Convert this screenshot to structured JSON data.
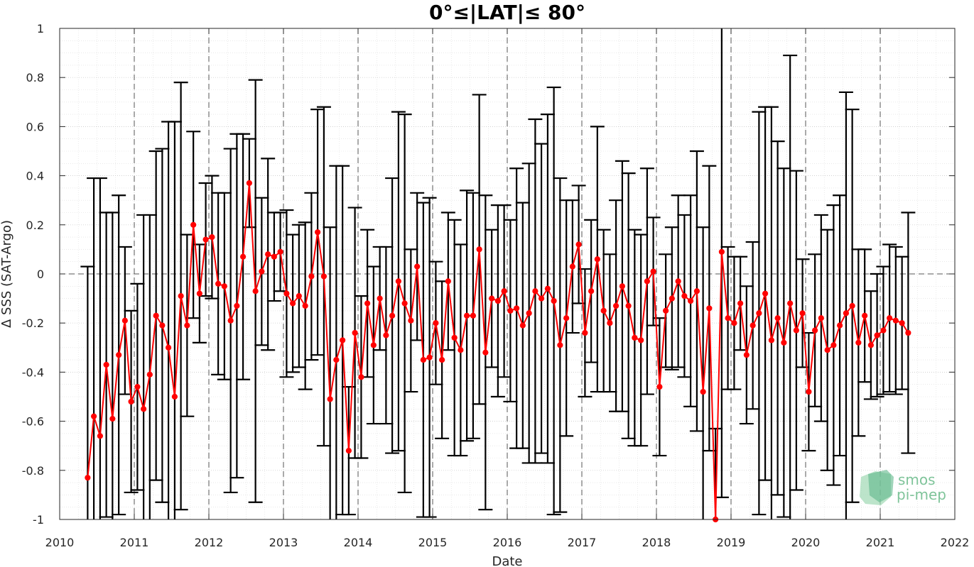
{
  "chart_data": {
    "type": "line",
    "title": "0°≤|LAT|≤ 80°",
    "xlabel": "Date",
    "ylabel": "Δ SSS (SAT-Argo)",
    "xlim": [
      2010,
      2022
    ],
    "ylim": [
      -1,
      1
    ],
    "x_ticks": [
      "2010",
      "2011",
      "2012",
      "2013",
      "2014",
      "2015",
      "2016",
      "2017",
      "2018",
      "2019",
      "2020",
      "2021",
      "2022"
    ],
    "y_ticks": [
      "-1",
      "-0.8",
      "-0.6",
      "-0.4",
      "-0.2",
      "0",
      "0.2",
      "0.4",
      "0.6",
      "0.8",
      "1"
    ],
    "grid": true,
    "minor_grid": true,
    "series": [
      {
        "color": "#ff0000",
        "errorbar_color": "#000000",
        "x": [
          2010.375,
          2010.458,
          2010.542,
          2010.625,
          2010.708,
          2010.792,
          2010.875,
          2010.958,
          2011.042,
          2011.125,
          2011.208,
          2011.292,
          2011.375,
          2011.458,
          2011.542,
          2011.625,
          2011.708,
          2011.792,
          2011.875,
          2011.958,
          2012.042,
          2012.125,
          2012.208,
          2012.292,
          2012.375,
          2012.458,
          2012.542,
          2012.625,
          2012.708,
          2012.792,
          2012.875,
          2012.958,
          2013.042,
          2013.125,
          2013.208,
          2013.292,
          2013.375,
          2013.458,
          2013.542,
          2013.625,
          2013.708,
          2013.792,
          2013.875,
          2013.958,
          2014.042,
          2014.125,
          2014.208,
          2014.292,
          2014.375,
          2014.458,
          2014.542,
          2014.625,
          2014.708,
          2014.792,
          2014.875,
          2014.958,
          2015.042,
          2015.125,
          2015.208,
          2015.292,
          2015.375,
          2015.458,
          2015.542,
          2015.625,
          2015.708,
          2015.792,
          2015.875,
          2015.958,
          2016.042,
          2016.125,
          2016.208,
          2016.292,
          2016.375,
          2016.458,
          2016.542,
          2016.625,
          2016.708,
          2016.792,
          2016.875,
          2016.958,
          2017.042,
          2017.125,
          2017.208,
          2017.292,
          2017.375,
          2017.458,
          2017.542,
          2017.625,
          2017.708,
          2017.792,
          2017.875,
          2017.958,
          2018.042,
          2018.125,
          2018.208,
          2018.292,
          2018.375,
          2018.458,
          2018.542,
          2018.625,
          2018.708,
          2018.792,
          2018.875,
          2018.958,
          2019.042,
          2019.125,
          2019.208,
          2019.292,
          2019.375,
          2019.458,
          2019.542,
          2019.625,
          2019.708,
          2019.792,
          2019.875,
          2019.958,
          2020.042,
          2020.125,
          2020.208,
          2020.292,
          2020.375,
          2020.458,
          2020.542,
          2020.625,
          2020.708,
          2020.792,
          2020.875,
          2020.958,
          2021.042,
          2021.125,
          2021.208,
          2021.292,
          2021.375
        ],
        "values": [
          -0.83,
          -0.58,
          -0.66,
          -0.37,
          -0.59,
          -0.33,
          -0.19,
          -0.52,
          -0.46,
          -0.55,
          -0.41,
          -0.17,
          -0.21,
          -0.3,
          -0.5,
          -0.09,
          -0.21,
          0.2,
          -0.08,
          0.14,
          0.15,
          -0.04,
          -0.05,
          -0.19,
          -0.13,
          0.07,
          0.37,
          -0.07,
          0.01,
          0.08,
          0.07,
          0.09,
          -0.08,
          -0.12,
          -0.09,
          -0.13,
          -0.01,
          0.17,
          -0.01,
          -0.51,
          -0.35,
          -0.27,
          -0.72,
          -0.24,
          -0.42,
          -0.12,
          -0.29,
          -0.1,
          -0.25,
          -0.17,
          -0.03,
          -0.12,
          -0.19,
          0.03,
          -0.35,
          -0.34,
          -0.2,
          -0.35,
          -0.03,
          -0.26,
          -0.31,
          -0.17,
          -0.17,
          0.1,
          -0.32,
          -0.1,
          -0.11,
          -0.07,
          -0.15,
          -0.14,
          -0.21,
          -0.16,
          -0.07,
          -0.1,
          -0.06,
          -0.11,
          -0.29,
          -0.18,
          0.03,
          0.12,
          -0.24,
          -0.07,
          0.06,
          -0.15,
          -0.2,
          -0.13,
          -0.05,
          -0.13,
          -0.26,
          -0.27,
          -0.03,
          0.01,
          -0.46,
          -0.15,
          -0.1,
          -0.03,
          -0.09,
          -0.11,
          -0.07,
          -0.48,
          -0.14,
          -1.0,
          0.09,
          -0.18,
          -0.2,
          -0.12,
          -0.33,
          -0.21,
          -0.16,
          -0.08,
          -0.27,
          -0.18,
          -0.28,
          -0.12,
          -0.23,
          -0.16,
          -0.48,
          -0.23,
          -0.18,
          -0.31,
          -0.29,
          -0.21,
          -0.16,
          -0.13,
          -0.28,
          -0.17,
          -0.29,
          -0.25,
          -0.23,
          -0.18,
          -0.19,
          -0.2,
          -0.24
        ],
        "errors": [
          0.86,
          0.97,
          1.05,
          0.62,
          0.84,
          0.65,
          0.3,
          0.37,
          0.42,
          0.79,
          0.65,
          0.67,
          0.72,
          0.92,
          1.12,
          0.87,
          0.37,
          0.38,
          0.2,
          0.23,
          0.25,
          0.37,
          0.38,
          0.7,
          0.7,
          0.5,
          0.18,
          0.86,
          0.3,
          0.39,
          0.18,
          0.16,
          0.34,
          0.28,
          0.29,
          0.34,
          0.34,
          0.5,
          0.69,
          0.7,
          0.79,
          0.71,
          0.26,
          0.51,
          0.33,
          0.3,
          0.32,
          0.21,
          0.36,
          0.56,
          0.69,
          0.77,
          0.29,
          0.3,
          0.64,
          0.65,
          0.25,
          0.32,
          0.28,
          0.48,
          0.43,
          0.51,
          0.5,
          0.63,
          0.64,
          0.28,
          0.39,
          0.35,
          0.37,
          0.57,
          0.5,
          0.61,
          0.7,
          0.63,
          0.71,
          0.87,
          0.68,
          0.48,
          0.27,
          0.24,
          0.26,
          0.29,
          0.54,
          0.33,
          0.28,
          0.43,
          0.51,
          0.54,
          0.44,
          0.43,
          0.46,
          0.22,
          0.28,
          0.23,
          0.29,
          0.35,
          0.33,
          0.43,
          0.57,
          0.67,
          0.58,
          0.37,
          1.0,
          0.29,
          0.27,
          0.19,
          0.28,
          0.34,
          0.82,
          0.76,
          0.95,
          0.72,
          0.71,
          1.01,
          0.65,
          0.22,
          0.24,
          0.31,
          0.42,
          0.49,
          0.57,
          0.53,
          0.9,
          0.8,
          0.38,
          0.27,
          0.22,
          0.25,
          0.26,
          0.3,
          0.3,
          0.27,
          0.49
        ]
      }
    ],
    "reference_line_y": 0,
    "vertical_reference_lines": [
      2011,
      2012,
      2013,
      2014,
      2015,
      2016,
      2017,
      2018,
      2019,
      2020,
      2021
    ],
    "logo": "smos pi-mep"
  }
}
